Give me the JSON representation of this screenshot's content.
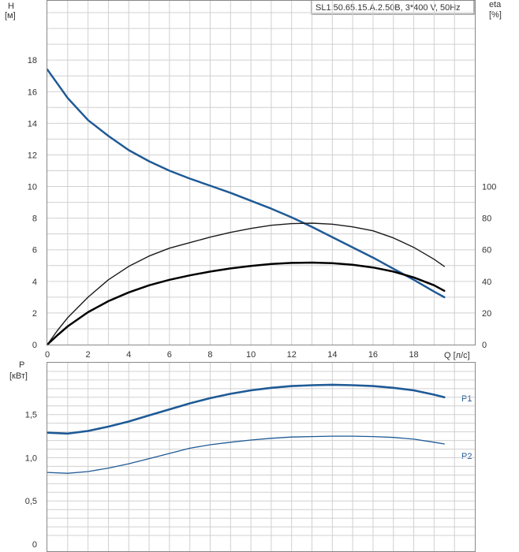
{
  "chart_data": [
    {
      "type": "line",
      "title": "SL1.50.65.15.A.2.50B, 3*400 V, 50Hz",
      "xlabel": "Q [л/с]",
      "ylabel": "H",
      "ylabel_unit": "[м]",
      "y2label": "eta",
      "y2label_unit": "[%]",
      "xlim": [
        0,
        21
      ],
      "ylim": [
        0,
        21.8
      ],
      "y2lim": [
        0,
        218
      ],
      "xticks": [
        0,
        2,
        4,
        6,
        8,
        10,
        12,
        14,
        16,
        18
      ],
      "yticks": [
        0,
        2,
        4,
        6,
        8,
        10,
        12,
        14,
        16,
        18
      ],
      "y2ticks": [
        0,
        20,
        40,
        60,
        80,
        100
      ],
      "grid": true,
      "series": [
        {
          "key": "H",
          "axis": "left",
          "color": "#1f5a96",
          "x": [
            0,
            0.5,
            1,
            2,
            3,
            4,
            5,
            6,
            7,
            8,
            9,
            10,
            11,
            12,
            13,
            14,
            15,
            16,
            17,
            18,
            19,
            19.5
          ],
          "values": [
            17.4,
            16.5,
            15.6,
            14.2,
            13.2,
            12.3,
            11.6,
            11.0,
            10.5,
            10.05,
            9.6,
            9.1,
            8.6,
            8.05,
            7.45,
            6.8,
            6.15,
            5.5,
            4.8,
            4.1,
            3.35,
            3.0
          ]
        },
        {
          "key": "eta_thin",
          "axis": "right",
          "color": "#1a1a1a",
          "x": [
            0,
            0.5,
            1,
            2,
            3,
            4,
            5,
            6,
            7,
            8,
            9,
            10,
            11,
            12,
            13,
            14,
            15,
            16,
            17,
            18,
            19,
            19.5
          ],
          "values": [
            0,
            9,
            17,
            30,
            41,
            49.5,
            56,
            61,
            64.5,
            68,
            71,
            73.5,
            75.5,
            76.5,
            76.8,
            76.2,
            74.5,
            72,
            67.5,
            61.5,
            54,
            49.5
          ]
        },
        {
          "key": "eta_thick",
          "axis": "right",
          "color": "#000000",
          "x": [
            0,
            0.5,
            1,
            2,
            3,
            4,
            5,
            6,
            7,
            8,
            9,
            10,
            11,
            12,
            13,
            14,
            15,
            16,
            17,
            18,
            19,
            19.5
          ],
          "values": [
            0,
            6,
            11.5,
            20.5,
            27.5,
            33,
            37.5,
            41,
            43.8,
            46.2,
            48.2,
            49.8,
            51,
            51.7,
            51.9,
            51.5,
            50.5,
            48.8,
            46.2,
            42.5,
            37.5,
            34
          ]
        }
      ]
    },
    {
      "type": "line",
      "xlabel": "",
      "ylabel": "P",
      "ylabel_unit": "[кВт]",
      "xlim": [
        0,
        21
      ],
      "ylim": [
        0,
        2.1
      ],
      "ytick_labels": [
        "0",
        "0,5",
        "1,0",
        "1,5"
      ],
      "yticks": [
        0,
        0.5,
        1.0,
        1.5
      ],
      "grid": true,
      "series": [
        {
          "name": "P1",
          "color": "#1f5a96",
          "x": [
            0,
            1,
            2,
            3,
            4,
            5,
            6,
            7,
            8,
            9,
            10,
            11,
            12,
            13,
            14,
            15,
            16,
            17,
            18,
            19,
            19.5
          ],
          "values": [
            1.29,
            1.28,
            1.31,
            1.36,
            1.42,
            1.49,
            1.56,
            1.63,
            1.69,
            1.74,
            1.78,
            1.81,
            1.83,
            1.84,
            1.845,
            1.84,
            1.83,
            1.81,
            1.78,
            1.73,
            1.7
          ]
        },
        {
          "name": "P2",
          "color": "#1f5a96",
          "x": [
            0,
            1,
            2,
            3,
            4,
            5,
            6,
            7,
            8,
            9,
            10,
            11,
            12,
            13,
            14,
            15,
            16,
            17,
            18,
            19,
            19.5
          ],
          "values": [
            0.83,
            0.82,
            0.84,
            0.88,
            0.93,
            0.99,
            1.05,
            1.11,
            1.15,
            1.18,
            1.205,
            1.225,
            1.24,
            1.245,
            1.25,
            1.25,
            1.245,
            1.235,
            1.215,
            1.18,
            1.16
          ]
        }
      ]
    }
  ]
}
